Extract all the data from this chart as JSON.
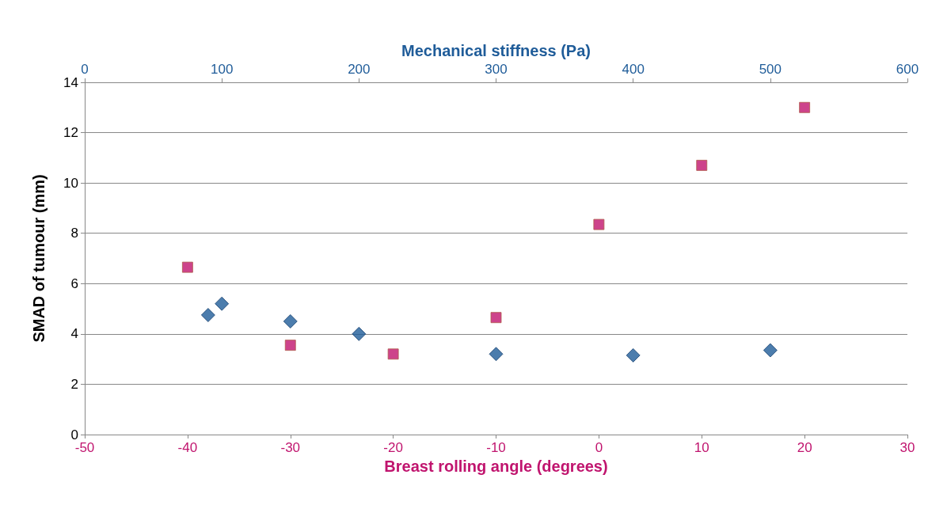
{
  "chart_data": {
    "type": "scatter",
    "xlabel": "Breast rolling angle (degrees)",
    "x2label": "Mechanical stiffness (Pa)",
    "ylabel": "SMAD of tumour (mm)",
    "xlim": [
      -50,
      30
    ],
    "xticks": [
      -50,
      -40,
      -30,
      -20,
      -10,
      0,
      10,
      20,
      30
    ],
    "x2lim": [
      0,
      600
    ],
    "x2ticks": [
      0,
      100,
      200,
      300,
      400,
      500,
      600
    ],
    "ylim": [
      0,
      14
    ],
    "yticks": [
      0,
      2,
      4,
      6,
      8,
      10,
      12,
      14
    ],
    "grid": "y",
    "series": [
      {
        "color": "#c0146e",
        "marker": "square",
        "x": [
          -40,
          -30,
          -20,
          -10,
          0,
          10,
          20
        ],
        "values": [
          6.65,
          3.55,
          3.2,
          4.65,
          8.35,
          10.7,
          13.0
        ]
      },
      {
        "color": "#1f5c99",
        "marker": "diamond",
        "axis": "x2",
        "x": [
          90,
          100,
          150,
          200,
          300,
          400,
          500
        ],
        "values": [
          4.75,
          5.2,
          4.5,
          4.0,
          3.2,
          3.15,
          3.35
        ]
      }
    ]
  }
}
